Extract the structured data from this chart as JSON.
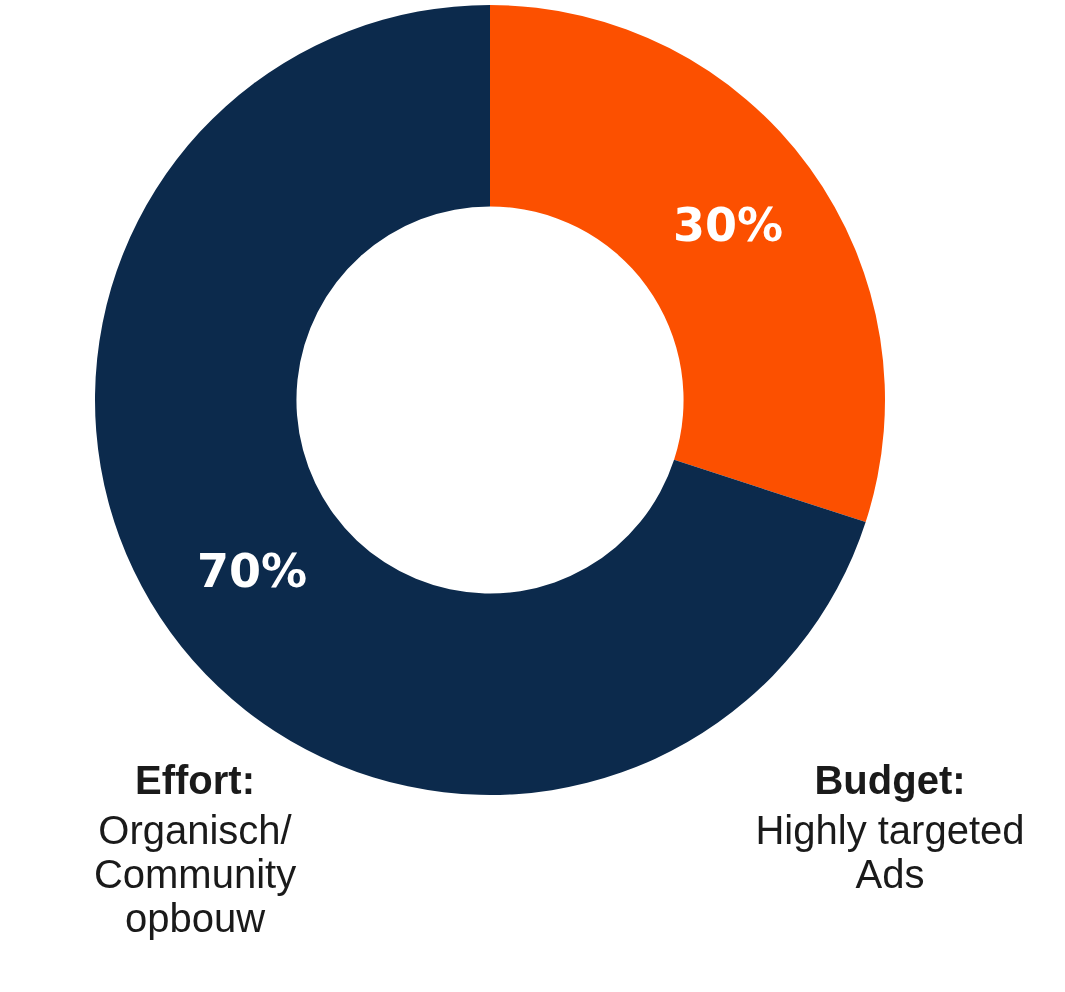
{
  "chart_data": {
    "type": "donut",
    "categories": [
      "Budget:\nHighly targeted\nAds",
      "Effort:\nOrganisch/\nCommunity\nopbouw"
    ],
    "values": [
      30,
      70
    ],
    "colors": [
      "#fc5000",
      "#0c2a4c"
    ],
    "value_labels": [
      "30%",
      "70%"
    ]
  }
}
